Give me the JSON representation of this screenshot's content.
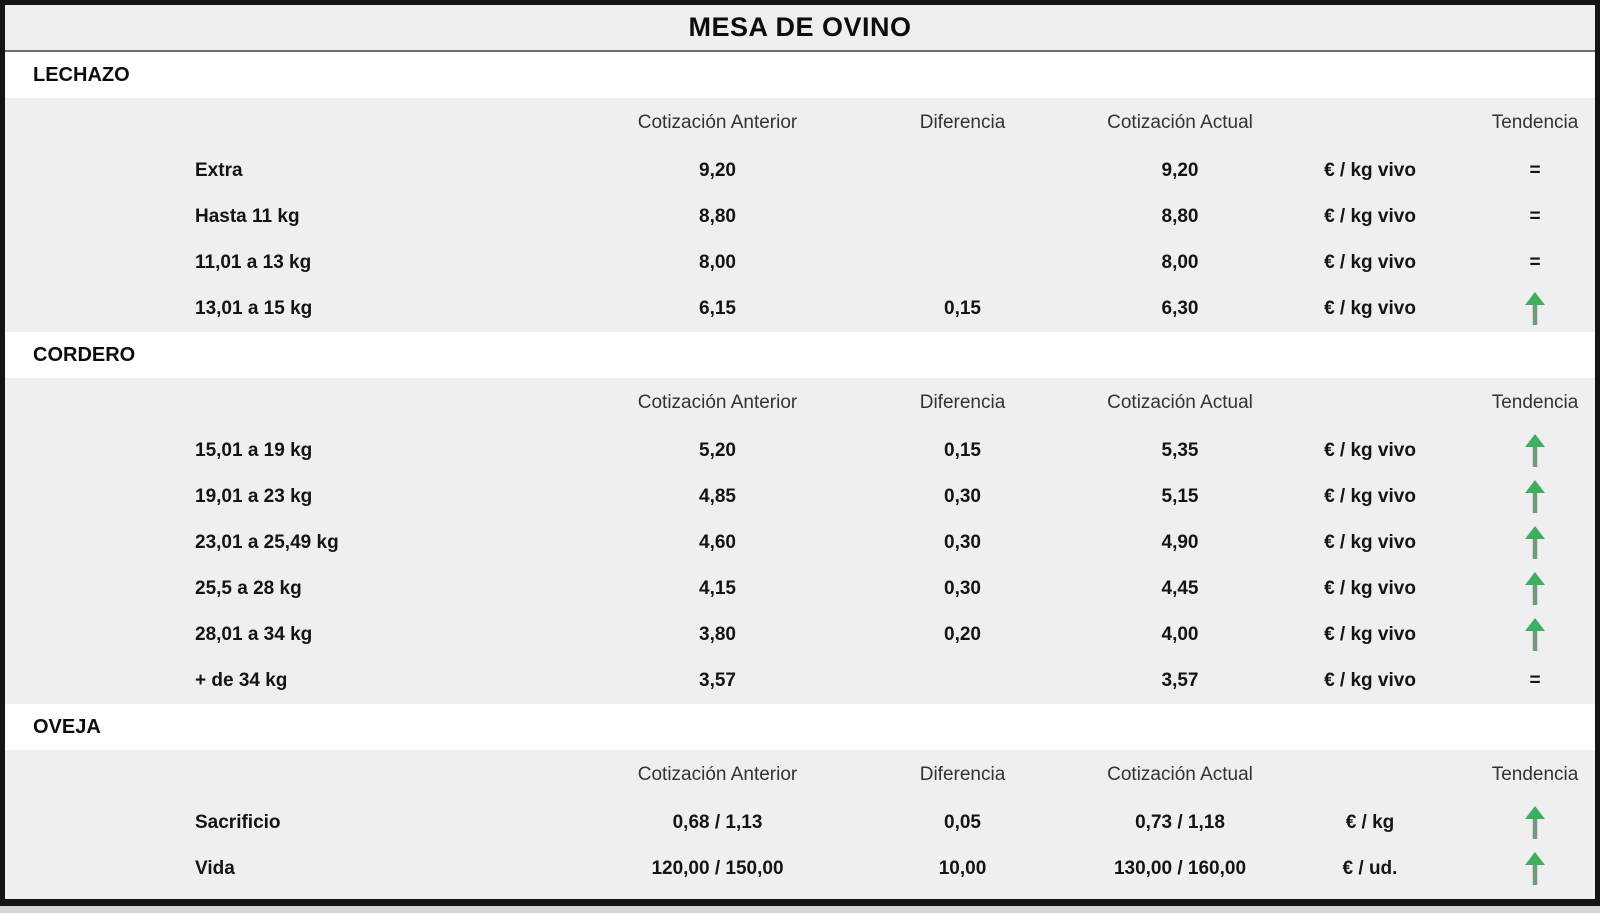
{
  "title": "MESA DE OVINO",
  "columns": {
    "anterior": "Cotización Anterior",
    "diferencia": "Diferencia",
    "actual": "Cotización Actual",
    "tendencia": "Tendencia"
  },
  "trend_glyphs": {
    "up": "↑",
    "equal": "="
  },
  "colors": {
    "trend_up_head": "#3fae5e",
    "trend_up_shaft": "#6f9a7c",
    "trend_equal": "#3a3a3a",
    "table_border": "#141414",
    "band_gray": "#efefef",
    "band_white": "#ffffff"
  },
  "sections": [
    {
      "name": "LECHAZO",
      "rows": [
        {
          "label": "Extra",
          "anterior": "9,20",
          "diferencia": "",
          "actual": "9,20",
          "unit": "€ / kg vivo",
          "trend": "equal"
        },
        {
          "label": "Hasta 11 kg",
          "anterior": "8,80",
          "diferencia": "",
          "actual": "8,80",
          "unit": "€ / kg vivo",
          "trend": "equal"
        },
        {
          "label": "11,01 a 13 kg",
          "anterior": "8,00",
          "diferencia": "",
          "actual": "8,00",
          "unit": "€ / kg vivo",
          "trend": "equal"
        },
        {
          "label": "13,01 a 15 kg",
          "anterior": "6,15",
          "diferencia": "0,15",
          "actual": "6,30",
          "unit": "€ / kg vivo",
          "trend": "up"
        }
      ]
    },
    {
      "name": "CORDERO",
      "rows": [
        {
          "label": "15,01 a 19 kg",
          "anterior": "5,20",
          "diferencia": "0,15",
          "actual": "5,35",
          "unit": "€ / kg vivo",
          "trend": "up"
        },
        {
          "label": "19,01 a 23 kg",
          "anterior": "4,85",
          "diferencia": "0,30",
          "actual": "5,15",
          "unit": "€ / kg vivo",
          "trend": "up"
        },
        {
          "label": "23,01 a 25,49 kg",
          "anterior": "4,60",
          "diferencia": "0,30",
          "actual": "4,90",
          "unit": "€ / kg vivo",
          "trend": "up"
        },
        {
          "label": "25,5 a 28 kg",
          "anterior": "4,15",
          "diferencia": "0,30",
          "actual": "4,45",
          "unit": "€ / kg vivo",
          "trend": "up"
        },
        {
          "label": "28,01 a 34 kg",
          "anterior": "3,80",
          "diferencia": "0,20",
          "actual": "4,00",
          "unit": "€ / kg vivo",
          "trend": "up"
        },
        {
          "label": "+ de 34 kg",
          "anterior": "3,57",
          "diferencia": "",
          "actual": "3,57",
          "unit": "€ / kg vivo",
          "trend": "equal"
        }
      ]
    },
    {
      "name": "OVEJA",
      "rows": [
        {
          "label": "Sacrificio",
          "anterior": "0,68 / 1,13",
          "diferencia": "0,05",
          "actual": "0,73 / 1,18",
          "unit": "€ / kg",
          "trend": "up"
        },
        {
          "label": "Vida",
          "anterior": "120,00 / 150,00",
          "diferencia": "10,00",
          "actual": "130,00 / 160,00",
          "unit": "€ / ud.",
          "trend": "up"
        }
      ]
    }
  ]
}
